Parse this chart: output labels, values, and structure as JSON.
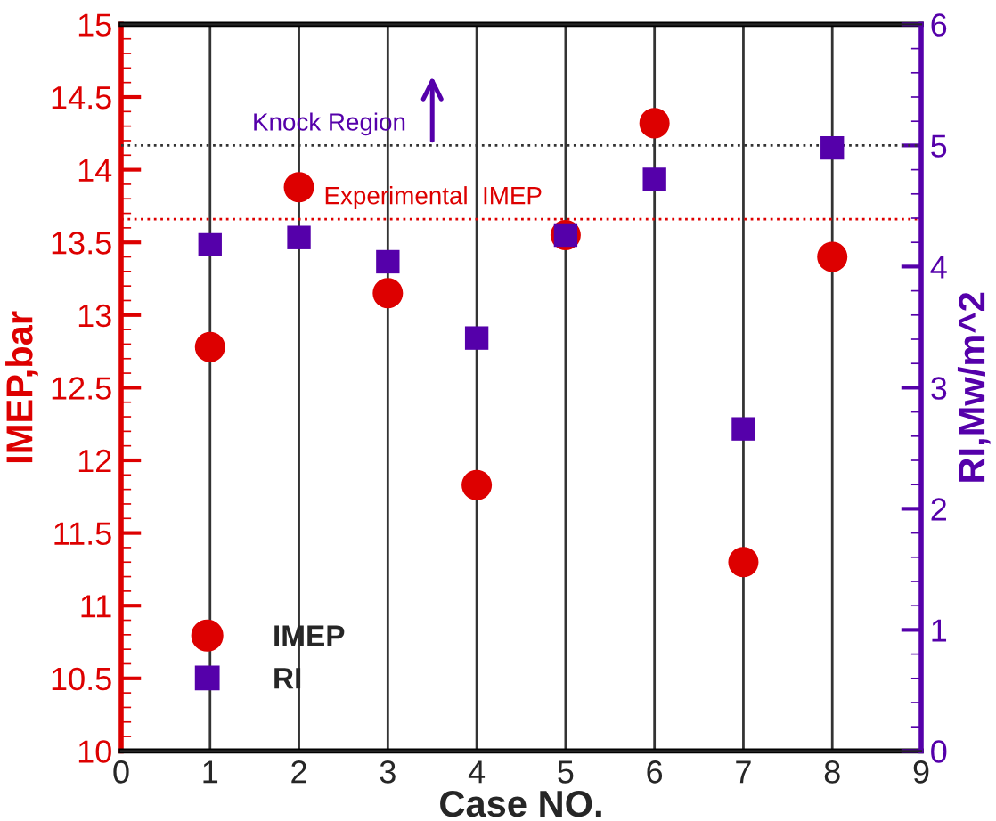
{
  "chart_data": {
    "type": "scatter",
    "xlabel": "Case NO.",
    "ylabel": "IMEP,bar",
    "y2label": "RI,Mw/m^2",
    "x": [
      1,
      2,
      3,
      4,
      5,
      6,
      7,
      8
    ],
    "series": [
      {
        "name": "IMEP",
        "color": "#dd0000",
        "marker": "circle",
        "values": [
          12.78,
          13.88,
          13.15,
          11.83,
          13.55,
          14.32,
          11.3,
          13.4
        ]
      },
      {
        "name": "RI",
        "color": "#5500aa",
        "marker": "square",
        "axis": "y2",
        "values": [
          4.18,
          4.24,
          4.04,
          3.41,
          4.26,
          4.72,
          2.66,
          4.98
        ]
      }
    ],
    "xlim": [
      0,
      9
    ],
    "xticks": [
      0,
      1,
      2,
      3,
      4,
      5,
      6,
      7,
      8,
      9
    ],
    "ylim": [
      10,
      15
    ],
    "yticks": [
      10,
      10.5,
      11,
      11.5,
      12,
      12.5,
      13,
      13.5,
      14,
      14.5,
      15
    ],
    "y2lim": [
      0,
      6
    ],
    "y2ticks": [
      0,
      1,
      2,
      3,
      4,
      5,
      6
    ],
    "ref_lines": [
      {
        "axis": "y2",
        "value": 5,
        "label": "Knock Region",
        "color": "#333333",
        "line_style": "dotted"
      },
      {
        "axis": "y",
        "value": 13.66,
        "label": "Experimental  IMEP",
        "color": "#dd0000",
        "line_style": "dotted"
      }
    ],
    "grid": "x",
    "legend": "bottom left"
  }
}
